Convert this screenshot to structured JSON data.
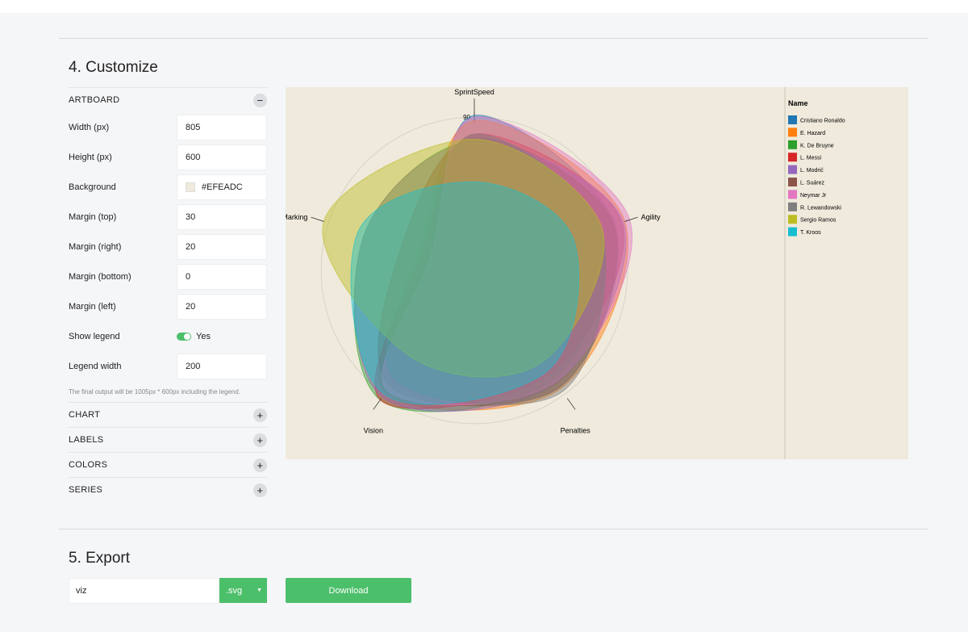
{
  "customize": {
    "heading": "4. Customize",
    "artboard": {
      "title": "ARTBOARD",
      "fields": [
        {
          "label": "Width (px)",
          "value": "805"
        },
        {
          "label": "Height (px)",
          "value": "600"
        },
        {
          "label": "Background",
          "value": "#EFEADC"
        },
        {
          "label": "Margin (top)",
          "value": "30"
        },
        {
          "label": "Margin (right)",
          "value": "20"
        },
        {
          "label": "Margin (bottom)",
          "value": "0"
        },
        {
          "label": "Margin (left)",
          "value": "20"
        }
      ],
      "show_legend": {
        "label": "Show legend",
        "value": "Yes"
      },
      "legend_width": {
        "label": "Legend width",
        "value": "200"
      },
      "note": "The final output will be 1005px * 600px including the legend."
    },
    "sections": [
      "CHART",
      "LABELS",
      "COLORS",
      "SERIES"
    ]
  },
  "export": {
    "heading": "5. Export",
    "filename": "viz",
    "format": ".svg",
    "button": "Download"
  },
  "chart_data": {
    "type": "radar",
    "axes": [
      "SprintSpeed",
      "Agility",
      "Penalties",
      "Vision",
      "Marking"
    ],
    "rlim": [
      0,
      100
    ],
    "rticks": [
      90
    ],
    "legend_title": "Name",
    "legend": "right",
    "series": [
      {
        "name": "Cristiano Ronaldo",
        "color": "#1f77b4",
        "values": [
          91,
          87,
          85,
          81,
          28
        ]
      },
      {
        "name": "E. Hazard",
        "color": "#ff7f0e",
        "values": [
          88,
          93,
          86,
          89,
          34
        ]
      },
      {
        "name": "K. De Bruyne",
        "color": "#2ca02c",
        "values": [
          76,
          79,
          79,
          94,
          68
        ]
      },
      {
        "name": "L. Messi",
        "color": "#d62728",
        "values": [
          80,
          91,
          75,
          94,
          32
        ]
      },
      {
        "name": "L. Modrić",
        "color": "#9467bd",
        "values": [
          75,
          92,
          82,
          92,
          68
        ]
      },
      {
        "name": "L. Suárez",
        "color": "#8c564b",
        "values": [
          78,
          86,
          85,
          84,
          45
        ]
      },
      {
        "name": "Neymar Jr",
        "color": "#e377c2",
        "values": [
          90,
          96,
          81,
          87,
          27
        ]
      },
      {
        "name": "R. Lewandowski",
        "color": "#7f7f7f",
        "values": [
          80,
          78,
          88,
          79,
          35
        ]
      },
      {
        "name": "Sergio Ramos",
        "color": "#bcbd22",
        "values": [
          77,
          79,
          67,
          63,
          93
        ]
      },
      {
        "name": "T. Kroos",
        "color": "#17becf",
        "values": [
          52,
          61,
          73,
          90,
          72
        ]
      }
    ]
  }
}
